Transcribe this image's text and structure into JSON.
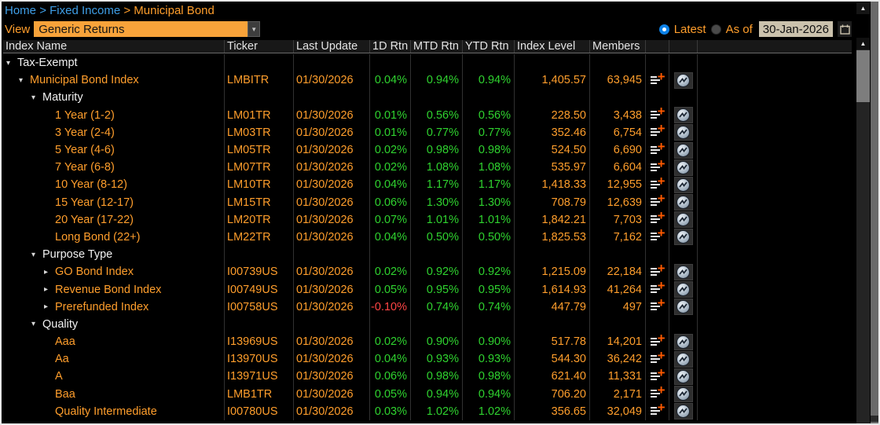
{
  "breadcrumb": {
    "items": [
      "Home",
      "Fixed Income",
      "Municipal Bond"
    ],
    "separator": ">"
  },
  "toolbar": {
    "view_label": "View",
    "view_value": "Generic Returns",
    "latest_label": "Latest",
    "asof_label": "As of",
    "date_value": "30-Jan-2026"
  },
  "icons": {
    "dropdown_arrow": "▼",
    "scroll_up_arrow": "▲",
    "tree_open": "▾",
    "tree_closed": "▸",
    "add_plus": "+"
  },
  "colors": {
    "accent_orange": "#ff9e2c",
    "positive_green": "#2fd32f",
    "negative_red": "#ff4545",
    "link_blue": "#3f9fe8",
    "dropdown_bg": "#f8a33a",
    "date_field_bg": "#cbc2ad",
    "radio_selected_blue": "#0d82e8"
  },
  "table": {
    "columns": [
      "Index Name",
      "Ticker",
      "Last Update",
      "1D Rtn",
      "MTD Rtn",
      "YTD Rtn",
      "Index Level",
      "Members"
    ],
    "rows": [
      {
        "name": "Tax-Exempt",
        "type": "category",
        "indent": 0,
        "arrow": "down",
        "ticker": "",
        "last_update": "",
        "d1": "",
        "mtd": "",
        "ytd": "",
        "index_level": "",
        "members": ""
      },
      {
        "name": "Municipal Bond Index",
        "type": "index",
        "indent": 1,
        "arrow": "down",
        "ticker": "LMBITR",
        "last_update": "01/30/2026",
        "d1": "0.04%",
        "mtd": "0.94%",
        "ytd": "0.94%",
        "index_level": "1,405.57",
        "members": "63,945"
      },
      {
        "name": "Maturity",
        "type": "category",
        "indent": 2,
        "arrow": "down",
        "ticker": "",
        "last_update": "",
        "d1": "",
        "mtd": "",
        "ytd": "",
        "index_level": "",
        "members": ""
      },
      {
        "name": "1 Year (1-2)",
        "type": "index",
        "indent": 3,
        "arrow": null,
        "ticker": "LM01TR",
        "last_update": "01/30/2026",
        "d1": "0.01%",
        "mtd": "0.56%",
        "ytd": "0.56%",
        "index_level": "228.50",
        "members": "3,438"
      },
      {
        "name": "3 Year (2-4)",
        "type": "index",
        "indent": 3,
        "arrow": null,
        "ticker": "LM03TR",
        "last_update": "01/30/2026",
        "d1": "0.01%",
        "mtd": "0.77%",
        "ytd": "0.77%",
        "index_level": "352.46",
        "members": "6,754"
      },
      {
        "name": "5 Year (4-6)",
        "type": "index",
        "indent": 3,
        "arrow": null,
        "ticker": "LM05TR",
        "last_update": "01/30/2026",
        "d1": "0.02%",
        "mtd": "0.98%",
        "ytd": "0.98%",
        "index_level": "524.50",
        "members": "6,690"
      },
      {
        "name": "7 Year (6-8)",
        "type": "index",
        "indent": 3,
        "arrow": null,
        "ticker": "LM07TR",
        "last_update": "01/30/2026",
        "d1": "0.02%",
        "mtd": "1.08%",
        "ytd": "1.08%",
        "index_level": "535.97",
        "members": "6,604"
      },
      {
        "name": "10 Year (8-12)",
        "type": "index",
        "indent": 3,
        "arrow": null,
        "ticker": "LM10TR",
        "last_update": "01/30/2026",
        "d1": "0.04%",
        "mtd": "1.17%",
        "ytd": "1.17%",
        "index_level": "1,418.33",
        "members": "12,955"
      },
      {
        "name": "15 Year (12-17)",
        "type": "index",
        "indent": 3,
        "arrow": null,
        "ticker": "LM15TR",
        "last_update": "01/30/2026",
        "d1": "0.06%",
        "mtd": "1.30%",
        "ytd": "1.30%",
        "index_level": "708.79",
        "members": "12,639"
      },
      {
        "name": "20 Year (17-22)",
        "type": "index",
        "indent": 3,
        "arrow": null,
        "ticker": "LM20TR",
        "last_update": "01/30/2026",
        "d1": "0.07%",
        "mtd": "1.01%",
        "ytd": "1.01%",
        "index_level": "1,842.21",
        "members": "7,703"
      },
      {
        "name": "Long Bond (22+)",
        "type": "index",
        "indent": 3,
        "arrow": null,
        "ticker": "LM22TR",
        "last_update": "01/30/2026",
        "d1": "0.04%",
        "mtd": "0.50%",
        "ytd": "0.50%",
        "index_level": "1,825.53",
        "members": "7,162"
      },
      {
        "name": "Purpose Type",
        "type": "category",
        "indent": 2,
        "arrow": "down",
        "ticker": "",
        "last_update": "",
        "d1": "",
        "mtd": "",
        "ytd": "",
        "index_level": "",
        "members": ""
      },
      {
        "name": "GO Bond Index",
        "type": "index",
        "indent": 3,
        "arrow": "right",
        "ticker": "I00739US",
        "last_update": "01/30/2026",
        "d1": "0.02%",
        "mtd": "0.92%",
        "ytd": "0.92%",
        "index_level": "1,215.09",
        "members": "22,184"
      },
      {
        "name": "Revenue Bond Index",
        "type": "index",
        "indent": 3,
        "arrow": "right",
        "ticker": "I00749US",
        "last_update": "01/30/2026",
        "d1": "0.05%",
        "mtd": "0.95%",
        "ytd": "0.95%",
        "index_level": "1,614.93",
        "members": "41,264"
      },
      {
        "name": "Prerefunded Index",
        "type": "index",
        "indent": 3,
        "arrow": "right",
        "ticker": "I00758US",
        "last_update": "01/30/2026",
        "d1": "-0.10%",
        "mtd": "0.74%",
        "ytd": "0.74%",
        "index_level": "447.79",
        "members": "497"
      },
      {
        "name": "Quality",
        "type": "category",
        "indent": 2,
        "arrow": "down",
        "ticker": "",
        "last_update": "",
        "d1": "",
        "mtd": "",
        "ytd": "",
        "index_level": "",
        "members": ""
      },
      {
        "name": "Aaa",
        "type": "index",
        "indent": 3,
        "arrow": null,
        "ticker": "I13969US",
        "last_update": "01/30/2026",
        "d1": "0.02%",
        "mtd": "0.90%",
        "ytd": "0.90%",
        "index_level": "517.78",
        "members": "14,201"
      },
      {
        "name": "Aa",
        "type": "index",
        "indent": 3,
        "arrow": null,
        "ticker": "I13970US",
        "last_update": "01/30/2026",
        "d1": "0.04%",
        "mtd": "0.93%",
        "ytd": "0.93%",
        "index_level": "544.30",
        "members": "36,242"
      },
      {
        "name": "A",
        "type": "index",
        "indent": 3,
        "arrow": null,
        "ticker": "I13971US",
        "last_update": "01/30/2026",
        "d1": "0.06%",
        "mtd": "0.98%",
        "ytd": "0.98%",
        "index_level": "621.40",
        "members": "11,331"
      },
      {
        "name": "Baa",
        "type": "index",
        "indent": 3,
        "arrow": null,
        "ticker": "LMB1TR",
        "last_update": "01/30/2026",
        "d1": "0.05%",
        "mtd": "0.94%",
        "ytd": "0.94%",
        "index_level": "706.20",
        "members": "2,171"
      },
      {
        "name": "Quality Intermediate",
        "type": "index",
        "indent": 3,
        "arrow": null,
        "ticker": "I00780US",
        "last_update": "01/30/2026",
        "d1": "0.03%",
        "mtd": "1.02%",
        "ytd": "1.02%",
        "index_level": "356.65",
        "members": "32,049"
      }
    ]
  }
}
